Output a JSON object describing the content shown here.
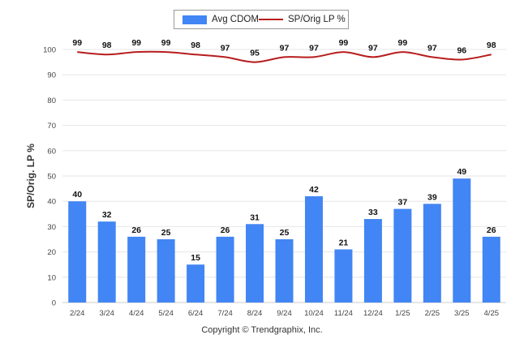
{
  "chart_data": {
    "type": "bar",
    "categories": [
      "2/24",
      "3/24",
      "4/24",
      "5/24",
      "6/24",
      "7/24",
      "8/24",
      "9/24",
      "10/24",
      "11/24",
      "12/24",
      "1/25",
      "2/25",
      "3/25",
      "4/25"
    ],
    "series": [
      {
        "name": "Avg CDOM",
        "type": "bar",
        "color": "#4285f4",
        "values": [
          40,
          32,
          26,
          25,
          15,
          26,
          31,
          25,
          42,
          21,
          33,
          37,
          39,
          49,
          26
        ]
      },
      {
        "name": "SP/Orig LP %",
        "type": "line",
        "color": "#b71c1c",
        "values": [
          99,
          98,
          99,
          99,
          98,
          97,
          95,
          97,
          97,
          99,
          97,
          99,
          97,
          96,
          98
        ]
      }
    ],
    "ylabel": "SP/Orig. LP %",
    "ylim": [
      0,
      100
    ],
    "yticks": [
      0,
      10,
      20,
      30,
      40,
      50,
      60,
      70,
      80,
      90,
      100
    ],
    "grid": true,
    "legend_position": "top-center"
  },
  "legend": {
    "bar_label": "Avg CDOM",
    "line_label": "SP/Orig LP %"
  },
  "footer": "Copyright © Trendgraphix, Inc."
}
